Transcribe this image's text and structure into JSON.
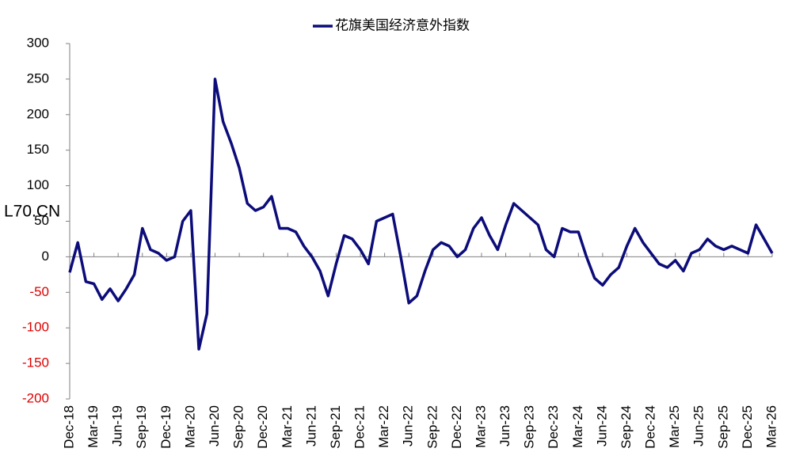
{
  "chart_data": {
    "type": "line",
    "annotation": "L70.CN",
    "x": [
      "Dec-18",
      null,
      null,
      "Mar-19",
      null,
      null,
      "Jun-19",
      null,
      null,
      "Sep-19",
      null,
      null,
      "Dec-19",
      null,
      null,
      "Mar-20",
      null,
      null,
      "Jun-20",
      null,
      null,
      "Sep-20",
      null,
      null,
      "Dec-20",
      null,
      null,
      "Mar-21",
      null,
      null,
      "Jun-21",
      null,
      null,
      "Sep-21",
      null,
      null,
      "Dec-21",
      null,
      null,
      "Mar-22",
      null,
      null,
      "Jun-22",
      null,
      null,
      "Sep-22",
      null,
      null,
      "Dec-22",
      null,
      null,
      "Mar-23",
      null,
      null,
      "Jun-23",
      null,
      null,
      "Sep-23",
      null,
      null,
      "Dec-23",
      null,
      null,
      "Mar-24",
      null,
      null,
      "Jun-24",
      null,
      null,
      "Sep-24",
      null,
      null,
      "Dec-24",
      null,
      null,
      "Mar-25",
      null,
      null,
      "Jun-25",
      null,
      null,
      "Sep-25",
      null,
      null,
      "Dec-25",
      null,
      null,
      "Mar-26"
    ],
    "series": [
      {
        "name": "花旗美国经济意外指数",
        "color": "#0c0c7a",
        "values": [
          -22,
          20,
          -35,
          -38,
          -60,
          -45,
          -62,
          -45,
          -25,
          40,
          10,
          5,
          -5,
          0,
          50,
          65,
          -130,
          -80,
          250,
          190,
          160,
          125,
          75,
          65,
          70,
          85,
          40,
          40,
          35,
          15,
          0,
          -20,
          -55,
          -10,
          30,
          25,
          10,
          -10,
          50,
          55,
          60,
          0,
          -65,
          -55,
          -20,
          10,
          20,
          15,
          0,
          10,
          40,
          55,
          30,
          10,
          45,
          75,
          65,
          55,
          45,
          10,
          0,
          40,
          35,
          35,
          0,
          -30,
          -40,
          -25,
          -15,
          15,
          40,
          20,
          5,
          -10,
          -15,
          -5,
          -20,
          5,
          10,
          25,
          15,
          10,
          15,
          10,
          5,
          45,
          25,
          5
        ]
      }
    ],
    "ylim": [
      -200,
      300
    ],
    "yticks": [
      -200,
      -150,
      -100,
      -50,
      0,
      50,
      100,
      150,
      200,
      250,
      300
    ],
    "negative_tick_color": "#e00000",
    "annotation_color": "#e00000",
    "legend": "top"
  }
}
